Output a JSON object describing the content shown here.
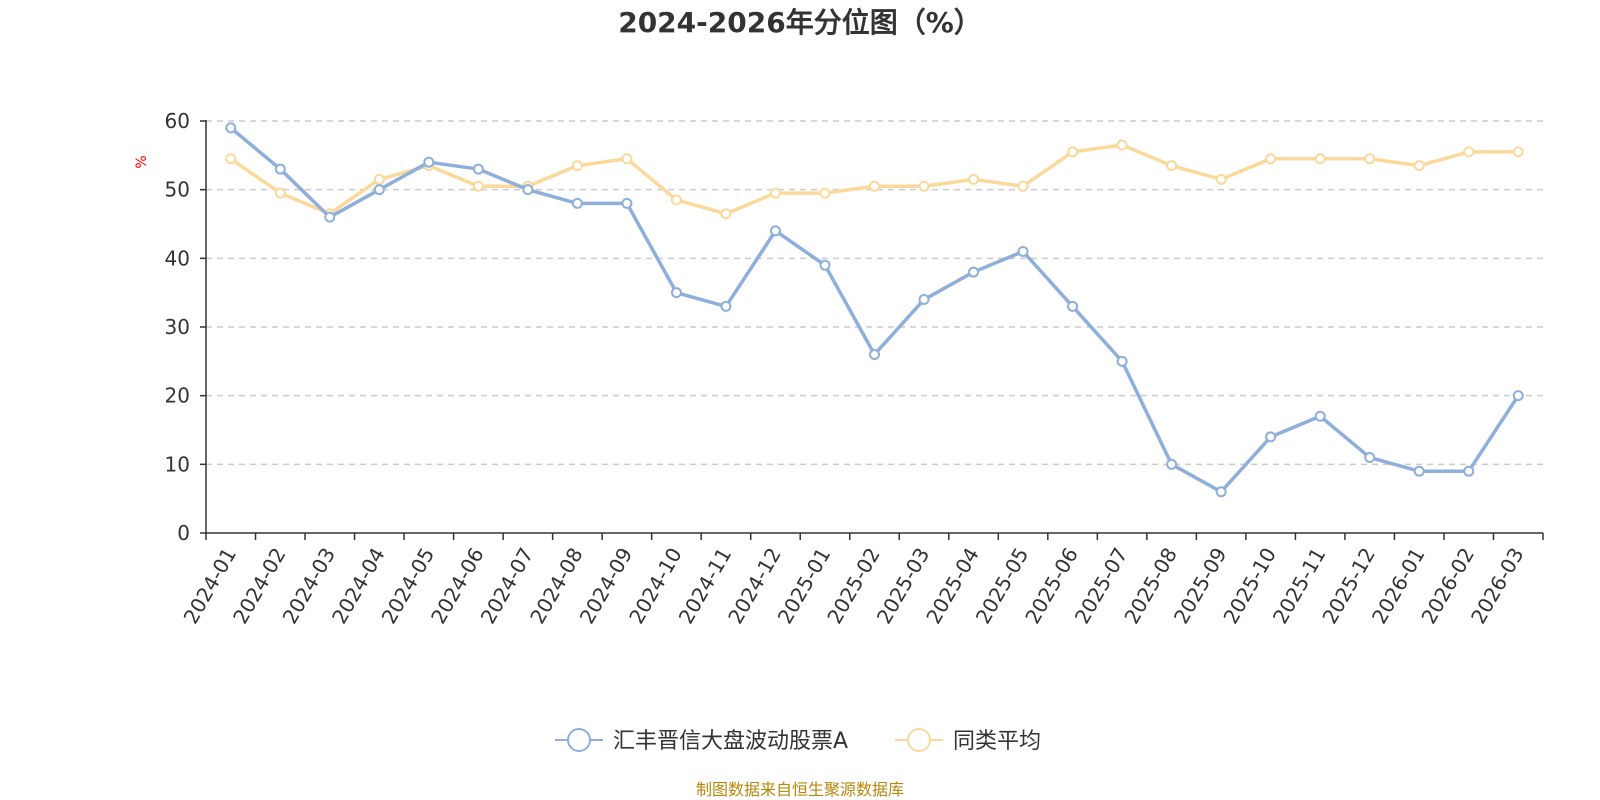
{
  "chart_data": {
    "type": "line",
    "title": "2024-2026年分位图（%）",
    "ylabel": "%",
    "xlabel": "",
    "ylim": [
      0,
      60
    ],
    "yticks": [
      0,
      10,
      20,
      30,
      40,
      50,
      60
    ],
    "grid": "horizontal-dashed",
    "categories": [
      "2024-01",
      "2024-02",
      "2024-03",
      "2024-04",
      "2024-05",
      "2024-06",
      "2024-07",
      "2024-08",
      "2024-09",
      "2024-10",
      "2024-11",
      "2024-12",
      "2025-01",
      "2025-02",
      "2025-03",
      "2025-04",
      "2025-05",
      "2025-06",
      "2025-07",
      "2025-08",
      "2025-09",
      "2025-10",
      "2025-11",
      "2025-12",
      "2026-01",
      "2026-02",
      "2026-03"
    ],
    "series": [
      {
        "name": "汇丰晋信大盘波动股票A",
        "color": "#8eaedb",
        "values": [
          59,
          53,
          46,
          50,
          54,
          53,
          50,
          48,
          48,
          35,
          33,
          44,
          39,
          26,
          34,
          38,
          41,
          33,
          25,
          10,
          6,
          14,
          17,
          11,
          9,
          9,
          20
        ]
      },
      {
        "name": "同类平均",
        "color": "#fbd99a",
        "values": [
          54.5,
          49.5,
          46.5,
          51.5,
          53.5,
          50.5,
          50.5,
          53.5,
          54.5,
          48.5,
          46.5,
          49.5,
          49.5,
          50.5,
          50.5,
          51.5,
          50.5,
          55.5,
          56.5,
          53.5,
          51.5,
          54.5,
          54.5,
          54.5,
          53.5,
          55.5,
          55.5
        ]
      }
    ],
    "legend_position": "bottom-center"
  },
  "source_note": "制图数据来自恒生聚源数据库"
}
